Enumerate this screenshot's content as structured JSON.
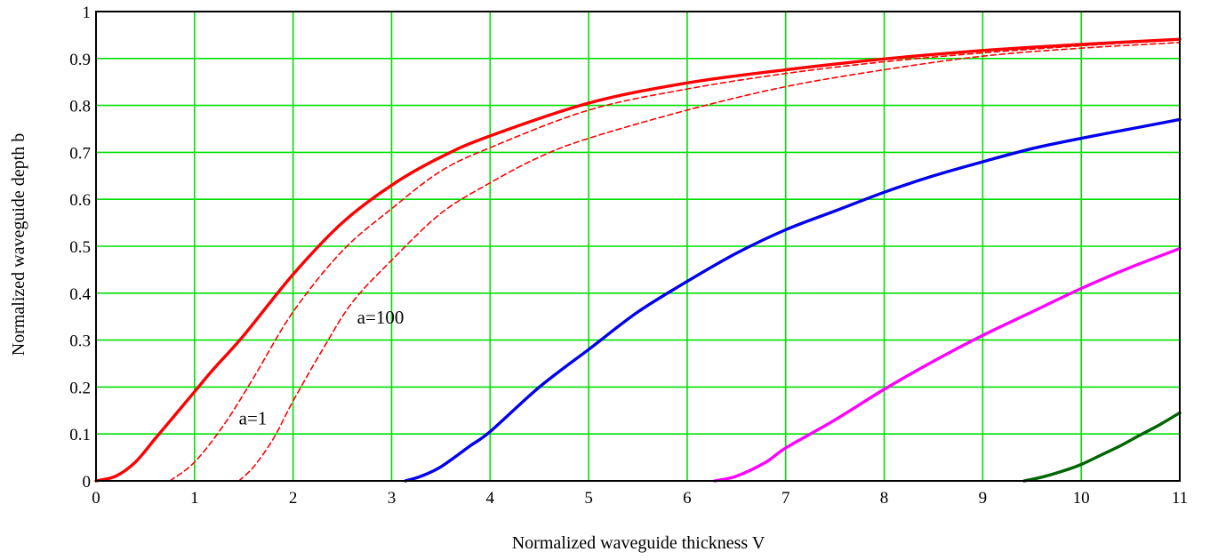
{
  "chart_data": {
    "type": "line",
    "title": "",
    "xlabel": "Normalized waveguide thickness  V",
    "ylabel": "Normalized waveguide depth b",
    "xlim": [
      0,
      11
    ],
    "ylim": [
      0,
      1
    ],
    "x_ticks": [
      "0",
      "1",
      "2",
      "3",
      "4",
      "5",
      "6",
      "7",
      "8",
      "9",
      "10",
      "11"
    ],
    "y_ticks": [
      "0",
      "0.1",
      "0.2",
      "0.3",
      "0.4",
      "0.5",
      "0.6",
      "0.7",
      "0.8",
      "0.9",
      "1"
    ],
    "grid": true,
    "grid_color": "#00e000",
    "annotations": [
      {
        "text": "a=100",
        "x": 2.65,
        "y": 0.335
      },
      {
        "text": "a=1",
        "x": 1.45,
        "y": 0.12
      }
    ],
    "series": [
      {
        "color": "#ff0000",
        "dashed": false,
        "x": [
          0,
          0.2,
          0.4,
          0.6,
          0.8,
          1,
          1.2,
          1.5,
          2,
          2.5,
          3,
          3.5,
          4,
          5,
          6,
          7,
          8,
          9,
          10,
          11
        ],
        "y": [
          0,
          0.01,
          0.04,
          0.09,
          0.14,
          0.19,
          0.24,
          0.31,
          0.44,
          0.55,
          0.63,
          0.69,
          0.735,
          0.805,
          0.848,
          0.876,
          0.899,
          0.917,
          0.93,
          0.941
        ]
      },
      {
        "color": "#ff0000",
        "dashed": true,
        "x": [
          0.75,
          1,
          1.3,
          1.6,
          2,
          2.5,
          3,
          3.5,
          4,
          5,
          6,
          7,
          8,
          9,
          10,
          11
        ],
        "y": [
          0,
          0.04,
          0.12,
          0.22,
          0.36,
          0.49,
          0.58,
          0.66,
          0.71,
          0.79,
          0.835,
          0.868,
          0.893,
          0.912,
          0.927,
          0.94
        ]
      },
      {
        "color": "#ff0000",
        "dashed": true,
        "x": [
          1.45,
          1.6,
          1.8,
          2,
          2.3,
          2.6,
          3,
          3.5,
          4,
          4.5,
          5,
          6,
          7,
          8,
          9,
          10,
          11
        ],
        "y": [
          0,
          0.03,
          0.09,
          0.17,
          0.28,
          0.38,
          0.47,
          0.57,
          0.635,
          0.69,
          0.73,
          0.79,
          0.84,
          0.876,
          0.905,
          0.922,
          0.934
        ]
      },
      {
        "color": "#0000ee",
        "dashed": false,
        "x": [
          3.14,
          3.3,
          3.5,
          3.8,
          4,
          4.5,
          5,
          5.5,
          6,
          6.5,
          7,
          7.5,
          8,
          8.5,
          9,
          9.5,
          10,
          10.5,
          11
        ],
        "y": [
          0,
          0.01,
          0.03,
          0.075,
          0.105,
          0.2,
          0.28,
          0.36,
          0.425,
          0.485,
          0.535,
          0.575,
          0.615,
          0.65,
          0.68,
          0.708,
          0.73,
          0.75,
          0.77
        ]
      },
      {
        "color": "#ff00ff",
        "dashed": false,
        "x": [
          6.28,
          6.5,
          6.8,
          7,
          7.5,
          8,
          8.5,
          9,
          9.5,
          10,
          10.5,
          11
        ],
        "y": [
          0,
          0.01,
          0.04,
          0.07,
          0.13,
          0.195,
          0.255,
          0.31,
          0.36,
          0.41,
          0.455,
          0.495
        ]
      },
      {
        "color": "#006400",
        "dashed": false,
        "x": [
          9.42,
          9.6,
          9.8,
          10,
          10.2,
          10.4,
          10.6,
          10.8,
          11
        ],
        "y": [
          0,
          0.008,
          0.02,
          0.035,
          0.055,
          0.075,
          0.098,
          0.12,
          0.145
        ]
      }
    ]
  }
}
